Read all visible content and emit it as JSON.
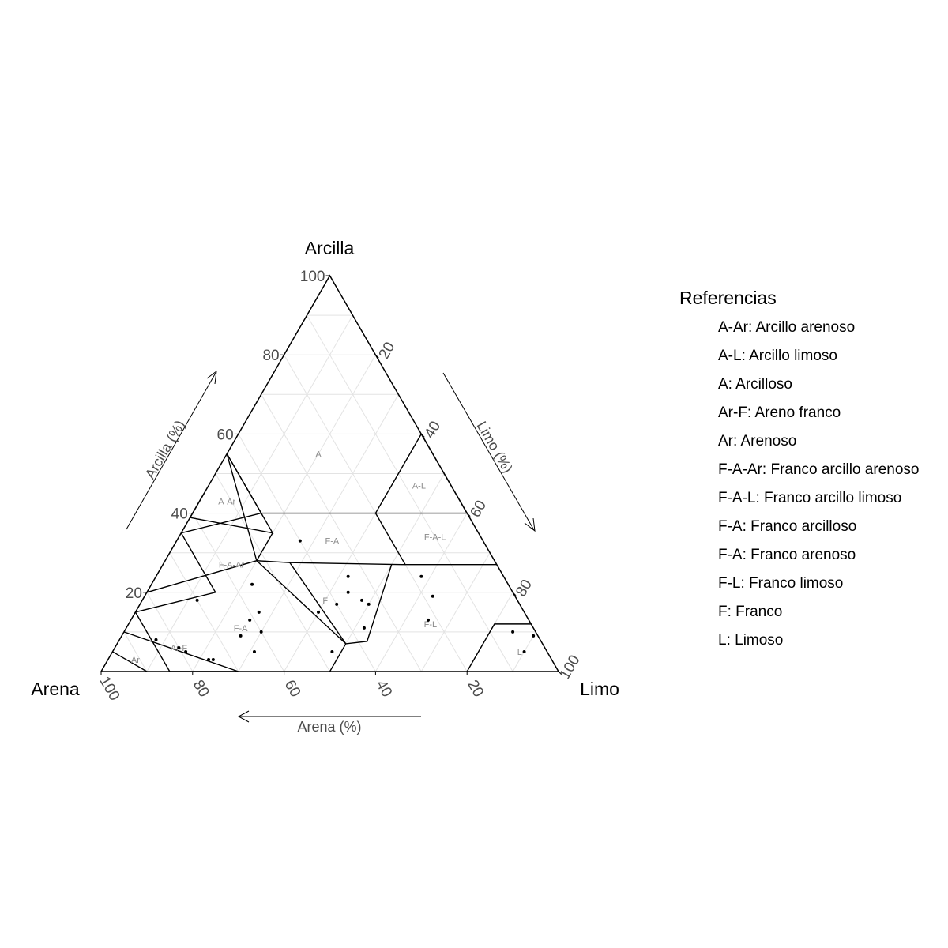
{
  "chart_data": {
    "type": "scatter",
    "subtype": "ternary-soil-texture",
    "axes": {
      "top": {
        "vertex_label": "Arcilla",
        "axis_label": "Arcilla (%)"
      },
      "left": {
        "vertex_label": "Arena",
        "axis_label": "Arena (%)"
      },
      "right": {
        "vertex_label": "Limo",
        "axis_label": "Limo (%)"
      }
    },
    "ticks": {
      "clay": [
        "20",
        "40",
        "60",
        "80",
        "100"
      ],
      "silt": [
        "20",
        "40",
        "60",
        "80",
        "100"
      ],
      "sand": [
        "100",
        "80",
        "60",
        "40",
        "20"
      ]
    },
    "grid": true,
    "regions": [
      {
        "label": "A",
        "sand": 25,
        "silt": 20,
        "clay": 55
      },
      {
        "label": "A-L",
        "sand": 7,
        "silt": 46,
        "clay": 47
      },
      {
        "label": "A-Ar",
        "sand": 51,
        "silt": 6,
        "clay": 43
      },
      {
        "label": "F-A",
        "sand": 33,
        "silt": 34,
        "clay": 33
      },
      {
        "label": "F-A-L",
        "sand": 10,
        "silt": 56,
        "clay": 34
      },
      {
        "label": "F-A-Ar",
        "sand": 58,
        "silt": 15,
        "clay": 27
      },
      {
        "label": "F",
        "sand": 42,
        "silt": 40,
        "clay": 18
      },
      {
        "label": "F-L",
        "sand": 22,
        "silt": 66,
        "clay": 12
      },
      {
        "label": "F-A",
        "sand": 64,
        "silt": 25,
        "clay": 11
      },
      {
        "label": "Ar-F",
        "sand": 80,
        "silt": 14,
        "clay": 6
      },
      {
        "label": "Ar",
        "sand": 91,
        "silt": 6,
        "clay": 3
      },
      {
        "label": "L",
        "sand": 6,
        "silt": 89,
        "clay": 5
      }
    ],
    "boundaries": [
      [
        [
          55,
          0,
          45
        ],
        [
          55,
          0,
          35
        ],
        [
          45,
          20,
          35
        ],
        [
          45,
          0,
          55
        ]
      ],
      [
        [
          0,
          60,
          40
        ],
        [
          0,
          40,
          60
        ]
      ],
      [
        [
          45,
          0,
          55
        ],
        [
          45,
          15,
          40
        ],
        [
          65,
          0,
          35
        ]
      ],
      [
        [
          20,
          40,
          40
        ],
        [
          0,
          60,
          40
        ]
      ],
      [
        [
          45,
          15,
          40
        ],
        [
          20,
          40,
          40
        ],
        [
          0,
          40,
          60
        ]
      ],
      [
        [
          20,
          40,
          40
        ],
        [
          20,
          53,
          27
        ],
        [
          0,
          73,
          27
        ]
      ],
      [
        [
          45,
          0,
          55
        ],
        [
          52,
          20,
          28
        ],
        [
          80,
          0,
          20
        ]
      ],
      [
        [
          45,
          20,
          35
        ],
        [
          52,
          20,
          28
        ],
        [
          45,
          27.5,
          27.5
        ],
        [
          20,
          53,
          27
        ]
      ],
      [
        [
          65,
          0,
          35
        ],
        [
          65,
          15,
          20
        ],
        [
          85,
          0,
          15
        ]
      ],
      [
        [
          45,
          27.5,
          27.5
        ],
        [
          43,
          50,
          7
        ],
        [
          50,
          50,
          0
        ]
      ],
      [
        [
          85,
          15,
          0
        ],
        [
          70,
          30,
          0
        ],
        [
          90,
          0,
          10
        ]
      ],
      [
        [
          85,
          15,
          0
        ],
        [
          85,
          0,
          15
        ]
      ],
      [
        [
          52,
          20,
          28
        ],
        [
          43,
          50,
          7
        ],
        [
          35,
          50,
          7
        ],
        [
          23,
          50,
          27
        ]
      ],
      [
        [
          20,
          80,
          0
        ],
        [
          8,
          80,
          12
        ],
        [
          0,
          88,
          12
        ]
      ],
      [
        [
          90,
          10,
          0
        ],
        [
          95,
          0,
          5
        ]
      ]
    ],
    "points": [
      {
        "sand": 40,
        "silt": 27,
        "clay": 33
      },
      {
        "sand": 56,
        "silt": 22,
        "clay": 22
      },
      {
        "sand": 70,
        "silt": 12,
        "clay": 18
      },
      {
        "sand": 36,
        "silt": 44,
        "clay": 20
      },
      {
        "sand": 33,
        "silt": 50,
        "clay": 17
      },
      {
        "sand": 40,
        "silt": 43,
        "clay": 17
      },
      {
        "sand": 34,
        "silt": 48,
        "clay": 18
      },
      {
        "sand": 34,
        "silt": 42,
        "clay": 24
      },
      {
        "sand": 18,
        "silt": 58,
        "clay": 24
      },
      {
        "sand": 18,
        "silt": 63,
        "clay": 19
      },
      {
        "sand": 22,
        "silt": 65,
        "clay": 13
      },
      {
        "sand": 37,
        "silt": 52,
        "clay": 11
      },
      {
        "sand": 45,
        "silt": 40,
        "clay": 15
      },
      {
        "sand": 58,
        "silt": 27,
        "clay": 15
      },
      {
        "sand": 61,
        "silt": 26,
        "clay": 13
      },
      {
        "sand": 60,
        "silt": 30,
        "clay": 10
      },
      {
        "sand": 65,
        "silt": 26,
        "clay": 9
      },
      {
        "sand": 64,
        "silt": 31,
        "clay": 5
      },
      {
        "sand": 75,
        "silt": 22,
        "clay": 3
      },
      {
        "sand": 74,
        "silt": 23,
        "clay": 3
      },
      {
        "sand": 84,
        "silt": 8,
        "clay": 8
      },
      {
        "sand": 80,
        "silt": 14,
        "clay": 6
      },
      {
        "sand": 79,
        "silt": 16,
        "clay": 5
      },
      {
        "sand": 47,
        "silt": 48,
        "clay": 5
      },
      {
        "sand": 5,
        "silt": 85,
        "clay": 10
      },
      {
        "sand": 5,
        "silt": 90,
        "clay": 5
      },
      {
        "sand": 1,
        "silt": 90,
        "clay": 9
      }
    ]
  },
  "legend": {
    "title": "Referencias",
    "items": [
      "A-Ar: Arcillo arenoso",
      "A-L: Arcillo limoso",
      "A: Arcilloso",
      "Ar-F: Areno franco",
      "Ar: Arenoso",
      "F-A-Ar: Franco arcillo arenoso",
      "F-A-L: Franco arcillo limoso",
      "F-A: Franco arcilloso",
      "F-A: Franco arenoso",
      "F-L: Franco limoso",
      "F: Franco",
      "L: Limoso"
    ]
  },
  "colors": {
    "frame": "#000000",
    "grid": "#e3e3e3",
    "tick_text": "#4d4d4d",
    "region_label": "#8c8c8c",
    "point": "#000000"
  }
}
